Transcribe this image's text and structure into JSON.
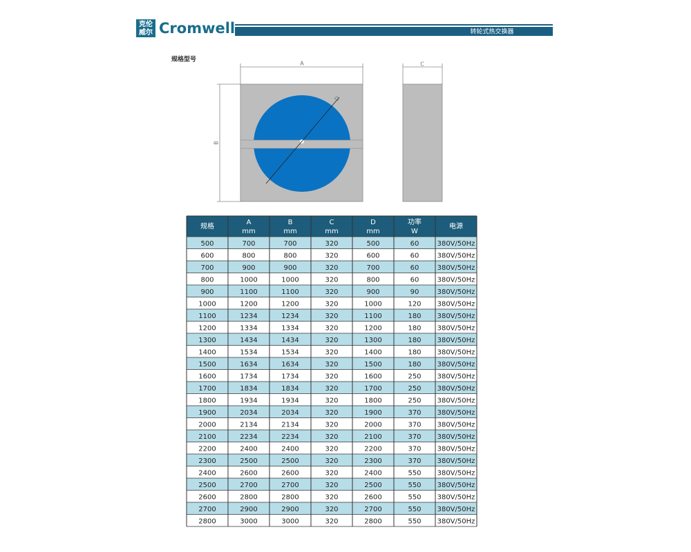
{
  "header": {
    "logo_cn": [
      "克伦",
      "威尔"
    ],
    "brand": "Cromwell",
    "product": "转轮式热交换器"
  },
  "section_title": "规格型号",
  "diagram": {
    "labels": {
      "A": "A",
      "B": "B",
      "C": "C",
      "D": "D"
    }
  },
  "table": {
    "header": [
      [
        "规格"
      ],
      [
        "A",
        "mm"
      ],
      [
        "B",
        "mm"
      ],
      [
        "C",
        "mm"
      ],
      [
        "D",
        "mm"
      ],
      [
        "功率",
        "W"
      ],
      [
        "电源"
      ]
    ],
    "rows": [
      [
        "500",
        "700",
        "700",
        "320",
        "500",
        "60",
        "380V/50Hz"
      ],
      [
        "600",
        "800",
        "800",
        "320",
        "600",
        "60",
        "380V/50Hz"
      ],
      [
        "700",
        "900",
        "900",
        "320",
        "700",
        "60",
        "380V/50Hz"
      ],
      [
        "800",
        "1000",
        "1000",
        "320",
        "800",
        "60",
        "380V/50Hz"
      ],
      [
        "900",
        "1100",
        "1100",
        "320",
        "900",
        "90",
        "380V/50Hz"
      ],
      [
        "1000",
        "1200",
        "1200",
        "320",
        "1000",
        "120",
        "380V/50Hz"
      ],
      [
        "1100",
        "1234",
        "1234",
        "320",
        "1100",
        "180",
        "380V/50Hz"
      ],
      [
        "1200",
        "1334",
        "1334",
        "320",
        "1200",
        "180",
        "380V/50Hz"
      ],
      [
        "1300",
        "1434",
        "1434",
        "320",
        "1300",
        "180",
        "380V/50Hz"
      ],
      [
        "1400",
        "1534",
        "1534",
        "320",
        "1400",
        "180",
        "380V/50Hz"
      ],
      [
        "1500",
        "1634",
        "1634",
        "320",
        "1500",
        "180",
        "380V/50Hz"
      ],
      [
        "1600",
        "1734",
        "1734",
        "320",
        "1600",
        "250",
        "380V/50Hz"
      ],
      [
        "1700",
        "1834",
        "1834",
        "320",
        "1700",
        "250",
        "380V/50Hz"
      ],
      [
        "1800",
        "1934",
        "1934",
        "320",
        "1800",
        "250",
        "380V/50Hz"
      ],
      [
        "1900",
        "2034",
        "2034",
        "320",
        "1900",
        "370",
        "380V/50Hz"
      ],
      [
        "2000",
        "2134",
        "2134",
        "320",
        "2000",
        "370",
        "380V/50Hz"
      ],
      [
        "2100",
        "2234",
        "2234",
        "320",
        "2100",
        "370",
        "380V/50Hz"
      ],
      [
        "2200",
        "2400",
        "2400",
        "320",
        "2200",
        "370",
        "380V/50Hz"
      ],
      [
        "2300",
        "2500",
        "2500",
        "320",
        "2300",
        "370",
        "380V/50Hz"
      ],
      [
        "2400",
        "2600",
        "2600",
        "320",
        "2400",
        "550",
        "380V/50Hz"
      ],
      [
        "2500",
        "2700",
        "2700",
        "320",
        "2500",
        "550",
        "380V/50Hz"
      ],
      [
        "2600",
        "2800",
        "2800",
        "320",
        "2600",
        "550",
        "380V/50Hz"
      ],
      [
        "2700",
        "2900",
        "2900",
        "320",
        "2700",
        "550",
        "380V/50Hz"
      ],
      [
        "2800",
        "3000",
        "3000",
        "320",
        "2800",
        "550",
        "380V/50Hz"
      ]
    ]
  }
}
